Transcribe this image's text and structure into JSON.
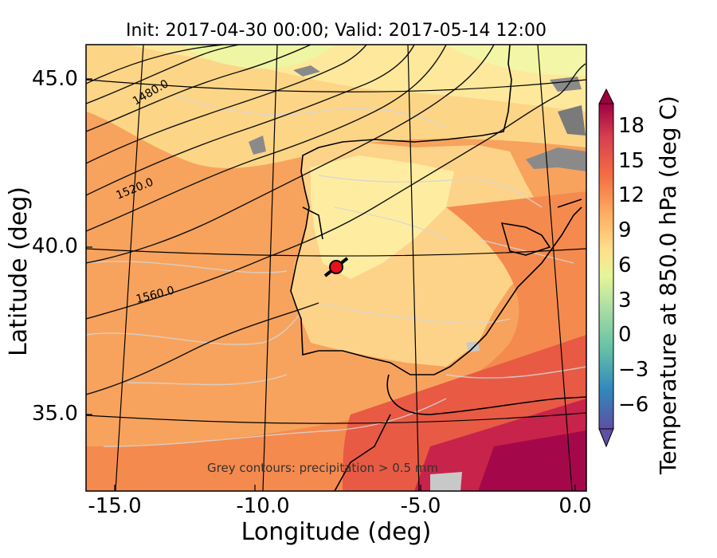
{
  "title": "Init: 2017-04-30 00:00; Valid: 2017-05-14 12:00",
  "axes": {
    "xlabel": "Longitude (deg)",
    "ylabel": "Latitude (deg)",
    "xticks": [
      "-15.0",
      "-10.0",
      "-5.0",
      "0.0"
    ],
    "yticks": [
      "45.0",
      "40.0",
      "35.0"
    ]
  },
  "colorbar": {
    "label": "Temperature at 850.0 hPa (deg C)",
    "ticks": [
      "18",
      "15",
      "12",
      "9",
      "6",
      "3",
      "0",
      "−3",
      "−6"
    ]
  },
  "contour_labels": [
    "1480.0",
    "1520.0",
    "1560.0"
  ],
  "annotation": "Grey contours: precipitation > 0.5 mm",
  "colors": {
    "warm_dark": "#9e0142",
    "warm": "#f46d43",
    "mid": "#fdae61",
    "pale": "#fee08b",
    "cool": "#e6f598",
    "cold": "#3288bd",
    "coldest": "#5e4fa2",
    "marker": "#e8111b"
  }
}
